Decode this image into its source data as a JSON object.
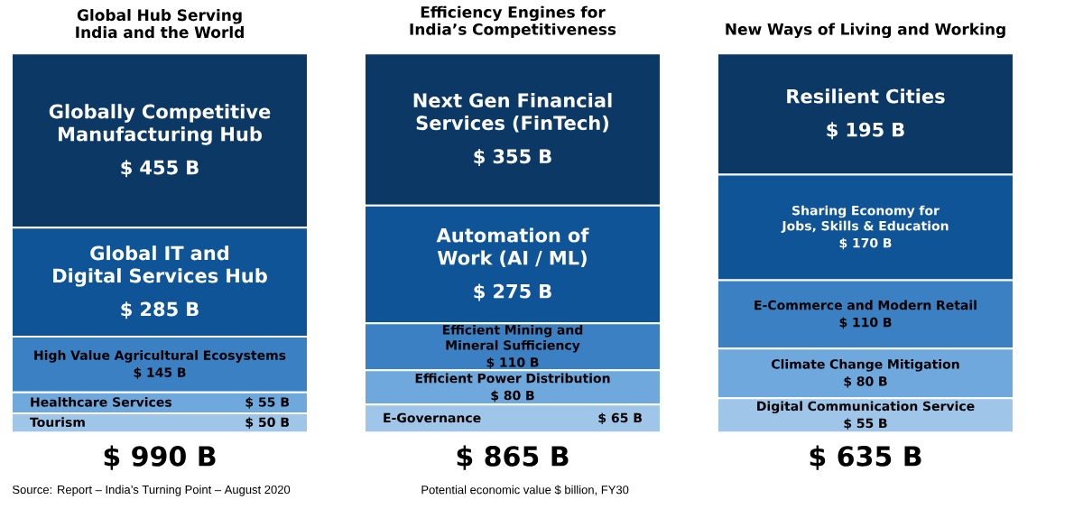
{
  "chart_data": [
    {
      "type": "bar",
      "stacked": true,
      "title": "Global Hub Serving India and the World",
      "categories": [
        null
      ],
      "series": [
        {
          "name": "Tourism",
          "color": "#9fc5e8",
          "values": [
            50
          ],
          "value_labels": [
            "$ 50 B"
          ]
        },
        {
          "name": "Healthcare Services",
          "color": "#6fa8dc",
          "values": [
            55
          ],
          "value_labels": [
            "$ 55 B"
          ]
        },
        {
          "name": "High Value Agricultural Ecosystems",
          "color": "#3b80c3",
          "values": [
            145
          ],
          "value_labels": [
            "$ 145 B"
          ]
        },
        {
          "name": "Global IT and Digital Services Hub",
          "color": "#0f5497",
          "values": [
            285
          ],
          "value_labels": [
            "$ 285 B"
          ]
        },
        {
          "name": "Globally Competitive Manufacturing Hub",
          "color": "#0c3866",
          "values": [
            455
          ],
          "value_labels": [
            "$ 455 B"
          ]
        }
      ],
      "annotations": [
        "$ 990 B",
        "Source: Report – India’s Turning Point – August 2020",
        "Potential economic value $ billion, FY30"
      ]
    },
    {
      "type": "bar",
      "stacked": true,
      "title": "Efficiency Engines for India’s Competitiveness",
      "categories": [
        null
      ],
      "series": [
        {
          "name": "E-Governance",
          "color": "#9fc5e8",
          "values": [
            65
          ],
          "value_labels": [
            "$ 65 B"
          ]
        },
        {
          "name": "Efficient Power Distribution",
          "color": "#6fa8dc",
          "values": [
            80
          ],
          "value_labels": [
            "$ 80 B"
          ]
        },
        {
          "name": "Efficient Mining and Mineral Sufficiency",
          "color": "#3b80c3",
          "values": [
            110
          ],
          "value_labels": [
            "$ 110 B"
          ]
        },
        {
          "name": "Automation of Work (AI / ML)",
          "color": "#0f5497",
          "values": [
            275
          ],
          "value_labels": [
            "$ 275 B"
          ]
        },
        {
          "name": "Next Gen Financial Services (FinTech)",
          "color": "#0c3866",
          "values": [
            355
          ],
          "value_labels": [
            "$ 355 B"
          ]
        }
      ],
      "annotations": [
        "$ 865 B"
      ]
    },
    {
      "type": "bar",
      "stacked": true,
      "title": "New Ways of Living and Working",
      "categories": [
        null
      ],
      "series": [
        {
          "name": "Digital Communication Service",
          "color": "#9fc5e8",
          "values": [
            55
          ],
          "value_labels": [
            "$ 55 B"
          ]
        },
        {
          "name": "Climate Change Mitigation",
          "color": "#6fa8dc",
          "values": [
            80
          ],
          "value_labels": [
            "$ 80 B"
          ]
        },
        {
          "name": "E-Commerce and Modern Retail",
          "color": "#3b80c3",
          "values": [
            110
          ],
          "value_labels": [
            "$ 110 B"
          ]
        },
        {
          "name": "Sharing Economy for Jobs, Skills & Education",
          "color": "#0f5497",
          "values": [
            170
          ],
          "value_labels": [
            "$ 170 B"
          ]
        },
        {
          "name": "Resilient Cities",
          "color": "#0c3866",
          "values": [
            195
          ],
          "value_labels": [
            "$ 195 B"
          ]
        }
      ],
      "annotations": [
        "$ 635 B"
      ]
    }
  ]
}
